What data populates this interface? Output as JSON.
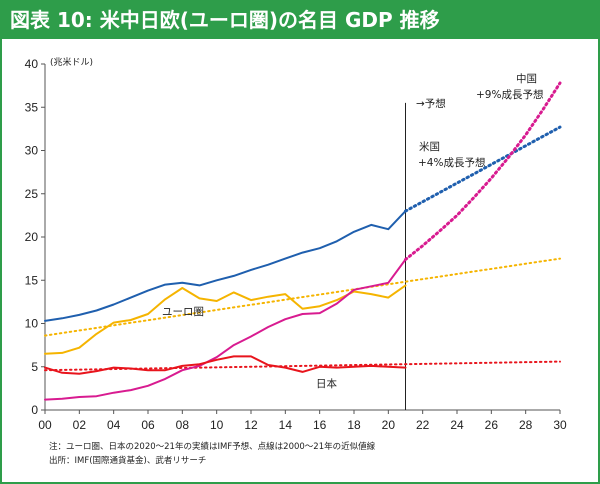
{
  "chart_data": {
    "type": "line",
    "title": "図表 10: 米中日欧(ユーロ圏)の名目 GDP 推移",
    "ylabel": "(兆米ドル)",
    "ylim": [
      0,
      40
    ],
    "yticks": [
      0,
      5,
      10,
      15,
      20,
      25,
      30,
      35,
      40
    ],
    "xlim": [
      0,
      30
    ],
    "xticks": [
      0,
      2,
      4,
      6,
      8,
      10,
      12,
      14,
      16,
      18,
      20,
      22,
      24,
      26,
      28,
      30
    ],
    "xtick_labels": [
      "00",
      "02",
      "04",
      "06",
      "08",
      "10",
      "12",
      "14",
      "16",
      "18",
      "20",
      "22",
      "24",
      "26",
      "28",
      "30"
    ],
    "grid": false,
    "forecast_x": 21,
    "forecast_label": "→予想",
    "series": [
      {
        "name": "米国",
        "color": "#1f5fae",
        "x": [
          0,
          1,
          2,
          3,
          4,
          5,
          6,
          7,
          8,
          9,
          10,
          11,
          12,
          13,
          14,
          15,
          16,
          17,
          18,
          19,
          20,
          21
        ],
        "values": [
          10.3,
          10.6,
          11.0,
          11.5,
          12.2,
          13.0,
          13.8,
          14.5,
          14.7,
          14.4,
          15.0,
          15.5,
          16.2,
          16.8,
          17.5,
          18.2,
          18.7,
          19.5,
          20.6,
          21.4,
          20.9,
          23.0
        ]
      },
      {
        "name": "中国",
        "color": "#d81b90",
        "x": [
          0,
          1,
          2,
          3,
          4,
          5,
          6,
          7,
          8,
          9,
          10,
          11,
          12,
          13,
          14,
          15,
          16,
          17,
          18,
          19,
          20,
          21
        ],
        "values": [
          1.2,
          1.3,
          1.5,
          1.6,
          2.0,
          2.3,
          2.8,
          3.6,
          4.6,
          5.1,
          6.1,
          7.5,
          8.5,
          9.6,
          10.5,
          11.1,
          11.2,
          12.3,
          13.9,
          14.3,
          14.7,
          17.4
        ]
      },
      {
        "name": "ユーロ圏",
        "color": "#f5b400",
        "x": [
          0,
          1,
          2,
          3,
          4,
          5,
          6,
          7,
          8,
          9,
          10,
          11,
          12,
          13,
          14,
          15,
          16,
          17,
          18,
          19,
          20,
          21
        ],
        "values": [
          6.5,
          6.6,
          7.2,
          8.8,
          10.1,
          10.4,
          11.1,
          12.8,
          14.1,
          12.9,
          12.6,
          13.6,
          12.7,
          13.1,
          13.4,
          11.7,
          12.0,
          12.7,
          13.7,
          13.4,
          13.0,
          14.4
        ]
      },
      {
        "name": "日本",
        "color": "#e8141c",
        "x": [
          0,
          1,
          2,
          3,
          4,
          5,
          6,
          7,
          8,
          9,
          10,
          11,
          12,
          13,
          14,
          15,
          16,
          17,
          18,
          19,
          20,
          21
        ],
        "values": [
          4.9,
          4.3,
          4.2,
          4.5,
          4.9,
          4.8,
          4.6,
          4.6,
          5.1,
          5.3,
          5.8,
          6.2,
          6.2,
          5.2,
          4.9,
          4.4,
          5.0,
          4.9,
          5.0,
          5.1,
          5.0,
          4.9
        ]
      }
    ],
    "projections": [
      {
        "name": "米国",
        "x": [
          21,
          30
        ],
        "values": [
          23.0,
          32.7
        ]
      },
      {
        "name": "中国",
        "x": [
          21,
          22,
          23,
          24,
          25,
          26,
          27,
          28,
          29,
          30
        ],
        "values": [
          17.4,
          19.0,
          20.7,
          22.5,
          24.6,
          26.8,
          29.2,
          31.8,
          34.7,
          37.8
        ]
      }
    ],
    "trend_lines": [
      {
        "name": "ユーロ圏",
        "x": [
          0,
          30
        ],
        "values": [
          8.6,
          17.5
        ]
      },
      {
        "name": "日本",
        "x": [
          0,
          30
        ],
        "values": [
          4.6,
          5.6
        ]
      }
    ],
    "annotations": {
      "usa_label": "米国",
      "usa_growth": "+4%成長予想",
      "china_label": "中国",
      "china_growth": "+9%成長予想",
      "euro_label": "ユーロ圏",
      "japan_label": "日本"
    },
    "notes": [
      "注：ユーロ圏、日本の2020～21年の実績はIMF予想、点線は2000～21年の近似値線",
      "出所：IMF(国際通貨基金)、武者リサーチ"
    ]
  }
}
